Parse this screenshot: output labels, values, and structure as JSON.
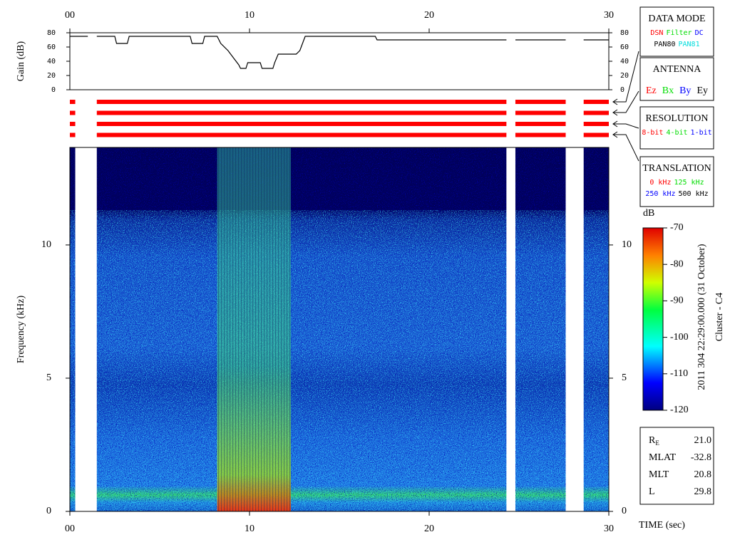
{
  "chart_data": {
    "type": "spectrogram",
    "xlabel": "TIME (sec)",
    "xlim": [
      0,
      30
    ],
    "xticks": [
      {
        "value": 0,
        "label": "00"
      },
      10,
      20,
      30
    ],
    "gain": {
      "type": "line",
      "ylabel": "Gain (dB)",
      "ylim": [
        0,
        80
      ],
      "yticks": [
        0,
        20,
        40,
        60,
        80
      ],
      "color": "#000000",
      "x": [
        0,
        1.0,
        1.2,
        1.5,
        2.5,
        2.6,
        3.2,
        3.3,
        6.7,
        6.8,
        7.4,
        7.5,
        8.2,
        8.4,
        8.8,
        9.1,
        9.4,
        9.5,
        9.8,
        9.9,
        10.6,
        10.7,
        11.3,
        11.4,
        11.6,
        12.6,
        12.8,
        13.1,
        17.0,
        17.1,
        24.3,
        24.5,
        24.8,
        27.6,
        28.0,
        28.6,
        30
      ],
      "values": [
        75,
        75,
        null,
        75,
        75,
        65,
        65,
        75,
        75,
        65,
        65,
        75,
        75,
        65,
        55,
        45,
        35,
        30,
        30,
        38,
        38,
        30,
        30,
        38,
        50,
        50,
        55,
        75,
        75,
        70,
        70,
        null,
        70,
        70,
        null,
        70,
        70
      ]
    },
    "coverage": {
      "color": "#ff0000",
      "rows": 4,
      "segments": [
        {
          "start": 0,
          "end": 0.3
        },
        {
          "start": 1.5,
          "end": 24.3
        },
        {
          "start": 24.8,
          "end": 27.6
        },
        {
          "start": 28.6,
          "end": 30
        }
      ]
    },
    "spectrogram": {
      "ylabel": "Frequency (kHz)",
      "ylim": [
        0,
        13.66
      ],
      "yticks": [
        0,
        5,
        10
      ]
    },
    "colorbar": {
      "label": "dB",
      "lim": [
        -120,
        -70
      ],
      "ticks": [
        -70,
        -80,
        -90,
        -100,
        -110,
        -120
      ]
    }
  },
  "legend_boxes": [
    {
      "title": "DATA MODE",
      "lines": [
        [
          {
            "text": "DSN",
            "color": "#ff0000"
          },
          {
            "text": "Filter",
            "color": "#00dd00"
          },
          {
            "text": "DC",
            "color": "#0000ff"
          }
        ],
        [
          {
            "text": "PAN80",
            "color": "#000000"
          },
          {
            "text": "PAN81",
            "color": "#00dddd"
          }
        ]
      ]
    },
    {
      "title": "ANTENNA",
      "lines": [
        [
          {
            "text": "Ez",
            "color": "#ff0000"
          },
          {
            "text": "Bx",
            "color": "#00dd00"
          },
          {
            "text": "By",
            "color": "#0000ff"
          },
          {
            "text": "Ey",
            "color": "#000000"
          }
        ]
      ]
    },
    {
      "title": "RESOLUTION",
      "lines": [
        [
          {
            "text": "8-bit",
            "color": "#ff0000"
          },
          {
            "text": "4-bit",
            "color": "#00dd00"
          },
          {
            "text": "1-bit",
            "color": "#0000ff"
          }
        ]
      ]
    },
    {
      "title": "TRANSLATION",
      "lines": [
        [
          {
            "text": "0 kHz",
            "color": "#ff0000"
          },
          {
            "text": "125 kHz",
            "color": "#00dd00"
          }
        ],
        [
          {
            "text": "250 kHz",
            "color": "#0000ff"
          },
          {
            "text": "500 kHz",
            "color": "#000000"
          }
        ]
      ]
    }
  ],
  "timestamp": "2011 304 22:29:00.000 (31 October)",
  "spacecraft": "Cluster - C4",
  "info": [
    {
      "label": "R",
      "sub": "E",
      "value": "21.0"
    },
    {
      "label": "MLAT",
      "value": "-32.8"
    },
    {
      "label": "MLT",
      "value": "20.8"
    },
    {
      "label": "L",
      "value": "29.8"
    }
  ]
}
